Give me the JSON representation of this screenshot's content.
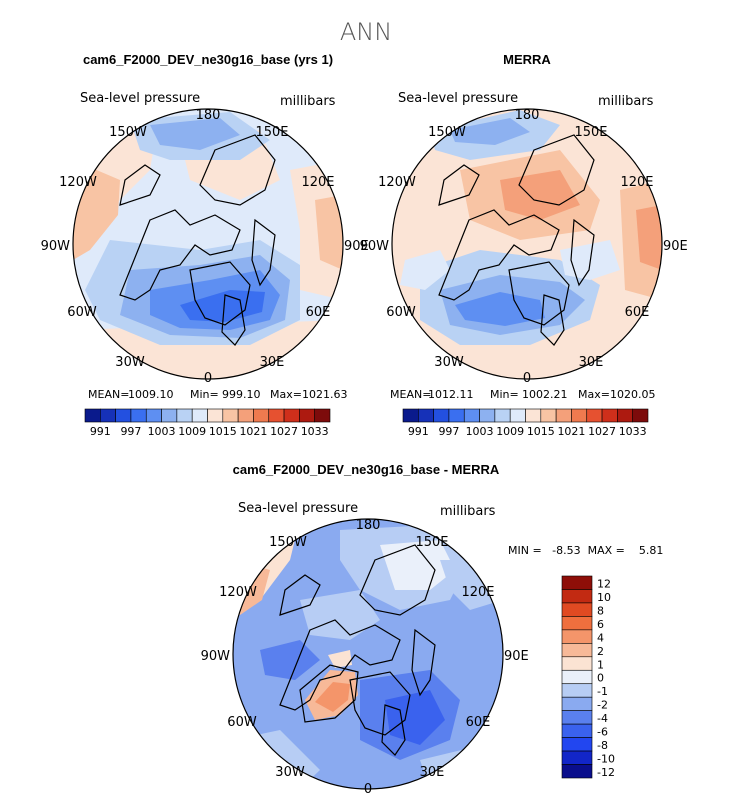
{
  "page_title": "ANN",
  "colors": {
    "levels_abs": [
      "#0a1a8c",
      "#1631b8",
      "#2350e0",
      "#3a6ff0",
      "#5e8ff2",
      "#8db1f0",
      "#b9d2f4",
      "#dfeafa",
      "#fbe4d6",
      "#f8c4a4",
      "#f4a07a",
      "#ef7a4f",
      "#e65130",
      "#cf2f1b",
      "#ad1a10",
      "#7d0b0b"
    ],
    "levels_diff": [
      "#0a0e8c",
      "#1226c8",
      "#2246f0",
      "#3a62ee",
      "#5a80ee",
      "#8aaaf0",
      "#b7cdf4",
      "#eaf0fa",
      "#fbe3d3",
      "#f7b998",
      "#f4956a",
      "#ef6f3e",
      "#e04a22",
      "#c22a12",
      "#8e0e08"
    ],
    "coast": "#000000"
  },
  "panels": {
    "model": {
      "title": "cam6_F2000_DEV_ne30g16_base (yrs 1)",
      "left_label": "Sea-level pressure",
      "right_label": "millibars",
      "stats": {
        "mean_label": "MEAN=",
        "mean": "1009.10",
        "min_label": "Min=",
        "min": "999.10",
        "max_label": "Max=",
        "max": "1021.63"
      }
    },
    "obs": {
      "title": "MERRA",
      "left_label": "Sea-level pressure",
      "right_label": "millibars",
      "stats": {
        "mean_label": "MEAN=",
        "mean": "1012.11",
        "min_label": "Min=",
        "min": "1002.21",
        "max_label": "Max=",
        "max": "1020.05"
      }
    },
    "diff": {
      "title": "cam6_F2000_DEV_ne30g16_base - MERRA",
      "left_label": "Sea-level pressure",
      "right_label": "millibars",
      "minmax": "MIN =   -8.53  MAX =    5.81"
    }
  },
  "lon_labels": [
    "180",
    "150E",
    "120E",
    "90E",
    "60E",
    "30E",
    "0",
    "30W",
    "60W",
    "90W",
    "120W",
    "150W"
  ],
  "chart_data": [
    {
      "type": "heatmap",
      "title": "cam6_F2000_DEV_ne30g16_base (yrs 1)",
      "variable": "Sea-level pressure",
      "units": "millibars",
      "projection": "north polar stereographic",
      "colorbar_ticks": [
        "991",
        "997",
        "1003",
        "1009",
        "1015",
        "1021",
        "1027",
        "1033"
      ],
      "mean": 1009.1,
      "min": 999.1,
      "max": 1021.63
    },
    {
      "type": "heatmap",
      "title": "MERRA",
      "variable": "Sea-level pressure",
      "units": "millibars",
      "projection": "north polar stereographic",
      "colorbar_ticks": [
        "991",
        "997",
        "1003",
        "1009",
        "1015",
        "1021",
        "1027",
        "1033"
      ],
      "mean": 1012.11,
      "min": 1002.21,
      "max": 1020.05
    },
    {
      "type": "heatmap",
      "title": "cam6_F2000_DEV_ne30g16_base - MERRA",
      "variable": "Sea-level pressure",
      "units": "millibars",
      "projection": "north polar stereographic",
      "colorbar_ticks": [
        "12",
        "10",
        "8",
        "6",
        "4",
        "2",
        "1",
        "0",
        "-1",
        "-2",
        "-4",
        "-6",
        "-8",
        "-10",
        "-12"
      ],
      "min": -8.53,
      "max": 5.81
    }
  ]
}
